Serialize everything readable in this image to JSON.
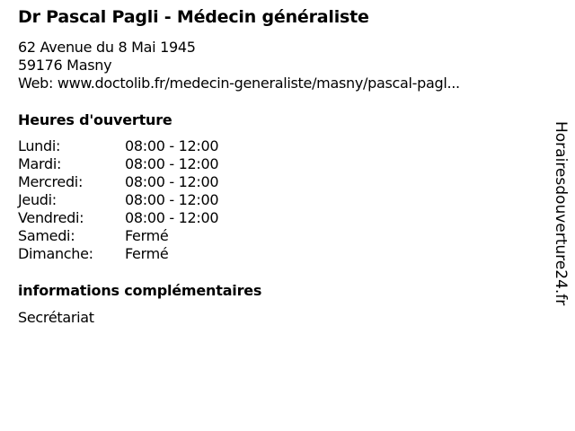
{
  "title": "Dr Pascal Pagli - Médecin généraliste",
  "address": {
    "street": "62 Avenue du 8 Mai 1945",
    "city": "59176 Masny",
    "web": "Web: www.doctolib.fr/medecin-generaliste/masny/pascal-pagl..."
  },
  "hours_heading": "Heures d'ouverture",
  "hours": [
    {
      "day": "Lundi:",
      "time": "08:00 - 12:00"
    },
    {
      "day": "Mardi:",
      "time": "08:00 - 12:00"
    },
    {
      "day": "Mercredi:",
      "time": "08:00 - 12:00"
    },
    {
      "day": "Jeudi:",
      "time": "08:00 - 12:00"
    },
    {
      "day": "Vendredi:",
      "time": "08:00 - 12:00"
    },
    {
      "day": "Samedi:",
      "time": "Fermé"
    },
    {
      "day": "Dimanche:",
      "time": "Fermé"
    }
  ],
  "info_heading": "informations complémentaires",
  "info_text": "Secrétariat",
  "watermark": "Horairesdouverture24.fr"
}
